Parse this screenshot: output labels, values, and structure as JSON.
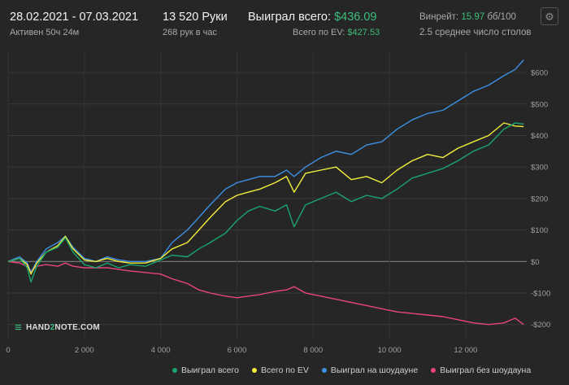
{
  "header": {
    "date_range": "28.02.2021 - 07.03.2021",
    "active": "Активен 50ч 24м",
    "hands": "13 520 Руки",
    "hands_per_hour": "268 рук в час",
    "won_label": "Выиграл всего:",
    "won_value": "$436.09",
    "ev_label": "Всего по EV:",
    "ev_value": "$427.53",
    "winrate_label": "Винрейт:",
    "winrate_value": "15.97",
    "winrate_unit": "бб/100",
    "tables": "2.5 среднее число столов"
  },
  "icons": {
    "settings": "gear-icon",
    "logo": "hand2note-logo-icon"
  },
  "logo": {
    "part1": "HAND",
    "part2": "2",
    "part3": "NOTE.COM"
  },
  "colors": {
    "won_total": "#1aa56c",
    "ev_total": "#f2ee3c",
    "showdown": "#3c8fe3",
    "non_showdown": "#e8457c",
    "accent_green": "#3dbd7a"
  },
  "chart_data": {
    "type": "line",
    "x_ticks": [
      0,
      2000,
      4000,
      6000,
      8000,
      10000,
      12000
    ],
    "x_tick_labels": [
      "0",
      "2 000",
      "4 000",
      "6 000",
      "8 000",
      "10 000",
      "12 000"
    ],
    "xlim": [
      0,
      13600
    ],
    "y_ticks": [
      -200,
      -100,
      0,
      100,
      200,
      300,
      400,
      500,
      600
    ],
    "y_tick_labels": [
      "-$200",
      "-$100",
      "$0",
      "$100",
      "$200",
      "$300",
      "$400",
      "$500",
      "$600"
    ],
    "ylim": [
      -250,
      670
    ],
    "grid": true,
    "legend_position": "bottom",
    "series": [
      {
        "name": "Выиграл всего",
        "color": "#1aa56c",
        "points": [
          [
            0,
            0
          ],
          [
            300,
            10
          ],
          [
            500,
            -20
          ],
          [
            600,
            -65
          ],
          [
            750,
            -15
          ],
          [
            1000,
            30
          ],
          [
            1300,
            45
          ],
          [
            1500,
            75
          ],
          [
            1700,
            30
          ],
          [
            2000,
            -10
          ],
          [
            2300,
            -20
          ],
          [
            2600,
            -5
          ],
          [
            2900,
            -20
          ],
          [
            3200,
            -10
          ],
          [
            3600,
            -15
          ],
          [
            4000,
            5
          ],
          [
            4300,
            20
          ],
          [
            4700,
            15
          ],
          [
            5000,
            40
          ],
          [
            5300,
            60
          ],
          [
            5700,
            90
          ],
          [
            6000,
            130
          ],
          [
            6300,
            160
          ],
          [
            6600,
            175
          ],
          [
            7000,
            160
          ],
          [
            7300,
            180
          ],
          [
            7500,
            110
          ],
          [
            7800,
            180
          ],
          [
            8200,
            200
          ],
          [
            8600,
            220
          ],
          [
            9000,
            190
          ],
          [
            9400,
            210
          ],
          [
            9800,
            200
          ],
          [
            10200,
            230
          ],
          [
            10600,
            265
          ],
          [
            11000,
            280
          ],
          [
            11400,
            295
          ],
          [
            11800,
            320
          ],
          [
            12200,
            350
          ],
          [
            12600,
            370
          ],
          [
            13000,
            420
          ],
          [
            13300,
            440
          ],
          [
            13520,
            436
          ]
        ]
      },
      {
        "name": "Всего по EV",
        "color": "#f2ee3c",
        "points": [
          [
            0,
            0
          ],
          [
            300,
            10
          ],
          [
            500,
            -10
          ],
          [
            600,
            -40
          ],
          [
            750,
            -5
          ],
          [
            1000,
            30
          ],
          [
            1300,
            50
          ],
          [
            1500,
            80
          ],
          [
            1700,
            40
          ],
          [
            2000,
            5
          ],
          [
            2300,
            0
          ],
          [
            2600,
            10
          ],
          [
            2900,
            0
          ],
          [
            3200,
            -5
          ],
          [
            3600,
            -5
          ],
          [
            4000,
            10
          ],
          [
            4300,
            40
          ],
          [
            4700,
            60
          ],
          [
            5000,
            100
          ],
          [
            5300,
            140
          ],
          [
            5700,
            190
          ],
          [
            6000,
            210
          ],
          [
            6300,
            220
          ],
          [
            6600,
            230
          ],
          [
            7000,
            250
          ],
          [
            7300,
            270
          ],
          [
            7500,
            220
          ],
          [
            7800,
            280
          ],
          [
            8200,
            290
          ],
          [
            8600,
            300
          ],
          [
            9000,
            260
          ],
          [
            9400,
            270
          ],
          [
            9800,
            250
          ],
          [
            10200,
            290
          ],
          [
            10600,
            320
          ],
          [
            11000,
            340
          ],
          [
            11400,
            330
          ],
          [
            11800,
            360
          ],
          [
            12200,
            380
          ],
          [
            12600,
            400
          ],
          [
            13000,
            440
          ],
          [
            13300,
            430
          ],
          [
            13520,
            428
          ]
        ]
      },
      {
        "name": "Выиграл на шоудауне",
        "color": "#3c8fe3",
        "points": [
          [
            0,
            0
          ],
          [
            300,
            15
          ],
          [
            500,
            -5
          ],
          [
            600,
            -35
          ],
          [
            750,
            0
          ],
          [
            1000,
            40
          ],
          [
            1300,
            60
          ],
          [
            1500,
            80
          ],
          [
            1700,
            45
          ],
          [
            2000,
            10
          ],
          [
            2300,
            0
          ],
          [
            2600,
            15
          ],
          [
            2900,
            5
          ],
          [
            3200,
            0
          ],
          [
            3600,
            0
          ],
          [
            4000,
            10
          ],
          [
            4300,
            60
          ],
          [
            4700,
            100
          ],
          [
            5000,
            140
          ],
          [
            5300,
            180
          ],
          [
            5700,
            230
          ],
          [
            6000,
            250
          ],
          [
            6300,
            260
          ],
          [
            6600,
            270
          ],
          [
            7000,
            270
          ],
          [
            7300,
            290
          ],
          [
            7500,
            270
          ],
          [
            7800,
            300
          ],
          [
            8200,
            330
          ],
          [
            8600,
            350
          ],
          [
            9000,
            340
          ],
          [
            9400,
            370
          ],
          [
            9800,
            380
          ],
          [
            10200,
            420
          ],
          [
            10600,
            450
          ],
          [
            11000,
            470
          ],
          [
            11400,
            480
          ],
          [
            11800,
            510
          ],
          [
            12200,
            540
          ],
          [
            12600,
            560
          ],
          [
            13000,
            590
          ],
          [
            13300,
            610
          ],
          [
            13520,
            640
          ]
        ]
      },
      {
        "name": "Выиграл без шоудауна",
        "color": "#e8457c",
        "points": [
          [
            0,
            0
          ],
          [
            300,
            -5
          ],
          [
            500,
            -15
          ],
          [
            600,
            -30
          ],
          [
            750,
            -15
          ],
          [
            1000,
            -10
          ],
          [
            1300,
            -15
          ],
          [
            1500,
            -5
          ],
          [
            1700,
            -15
          ],
          [
            2000,
            -20
          ],
          [
            2300,
            -20
          ],
          [
            2600,
            -20
          ],
          [
            2900,
            -25
          ],
          [
            3200,
            -30
          ],
          [
            3600,
            -35
          ],
          [
            4000,
            -40
          ],
          [
            4300,
            -55
          ],
          [
            4700,
            -70
          ],
          [
            5000,
            -90
          ],
          [
            5300,
            -100
          ],
          [
            5700,
            -110
          ],
          [
            6000,
            -115
          ],
          [
            6300,
            -110
          ],
          [
            6600,
            -105
          ],
          [
            7000,
            -95
          ],
          [
            7300,
            -90
          ],
          [
            7500,
            -80
          ],
          [
            7800,
            -100
          ],
          [
            8200,
            -110
          ],
          [
            8600,
            -120
          ],
          [
            9000,
            -130
          ],
          [
            9400,
            -140
          ],
          [
            9800,
            -150
          ],
          [
            10200,
            -160
          ],
          [
            10600,
            -165
          ],
          [
            11000,
            -170
          ],
          [
            11400,
            -175
          ],
          [
            11800,
            -185
          ],
          [
            12200,
            -195
          ],
          [
            12600,
            -200
          ],
          [
            13000,
            -195
          ],
          [
            13300,
            -180
          ],
          [
            13520,
            -200
          ]
        ]
      }
    ]
  }
}
